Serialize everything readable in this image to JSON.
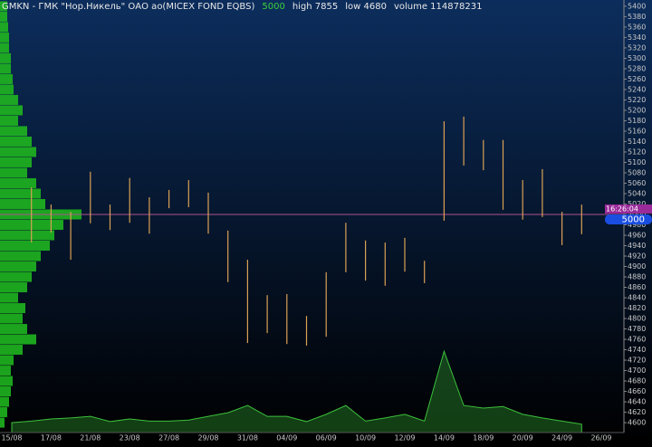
{
  "header": {
    "ticker": "GMKN - ГМК \"Нор.Никель\" ОАО ао(MICEX FOND EQBS)",
    "price": 5000,
    "high": "high 7855",
    "low": "low 4680",
    "volume": "volume 114878231",
    "time": "16:26:04"
  },
  "chart_data": {
    "type": "range",
    "categories": [
      "15/08",
      null,
      "17/08",
      null,
      "21/08",
      null,
      "23/08",
      null,
      "27/08",
      null,
      "29/08",
      null,
      "31/08",
      null,
      "04/09",
      null,
      "06/09",
      null,
      "10/09",
      null,
      "12/09",
      null,
      "14/09",
      null,
      "18/09",
      null,
      "20/09",
      null,
      "24/09",
      null,
      "26/09"
    ],
    "high": [
      null,
      5052,
      5019,
      5005,
      5082,
      5019,
      5070,
      5033,
      5047,
      5066,
      5042,
      4969,
      4913,
      4845,
      4847,
      4805,
      4889,
      4984,
      4950,
      4946,
      4955,
      4911,
      5179,
      5188,
      5143,
      5143,
      5066,
      5087,
      5005,
      5019,
      null
    ],
    "low": [
      null,
      4946,
      4965,
      4913,
      4983,
      4970,
      4984,
      4963,
      5012,
      5014,
      4963,
      4870,
      4753,
      4772,
      4751,
      4748,
      4765,
      4889,
      4873,
      4863,
      4890,
      4868,
      4988,
      5094,
      5085,
      5009,
      4990,
      4995,
      4941,
      4962,
      null
    ],
    "color": "#d9a055",
    "volume": [
      4600,
      4603,
      4607,
      4609,
      4612,
      4602,
      4607,
      4603,
      4603,
      4605,
      4612,
      4619,
      4633,
      4612,
      4612,
      4602,
      4616,
      4633,
      4603,
      4609,
      4616,
      4603,
      4737,
      4633,
      4628,
      4631,
      4616,
      4609,
      4603,
      4597,
      null
    ],
    "volume_color": "#2a8a2a",
    "profile_levels": [
      4600,
      4620,
      4640,
      4660,
      4680,
      4700,
      4720,
      4740,
      4760,
      4780,
      4800,
      4820,
      4840,
      4860,
      4880,
      4900,
      4920,
      4940,
      4960,
      4980,
      5000,
      5020,
      5040,
      5060,
      5080,
      5100,
      5120,
      5140,
      5160,
      5180,
      5200,
      5220,
      5240,
      5260,
      5280,
      5300,
      5320,
      5340,
      5360,
      5380,
      5400
    ],
    "profile_values": [
      5,
      8,
      10,
      12,
      14,
      12,
      15,
      25,
      40,
      30,
      25,
      28,
      20,
      30,
      35,
      40,
      45,
      55,
      60,
      70,
      90,
      50,
      45,
      40,
      30,
      35,
      40,
      35,
      30,
      20,
      25,
      20,
      15,
      14,
      12,
      12,
      10,
      10,
      9,
      8,
      8
    ],
    "profile_xlim": [
      0,
      100
    ],
    "profile_color": "#1fb51f",
    "ylim": [
      4581,
      5412
    ],
    "yticks": [
      4600,
      4620,
      4640,
      4660,
      4680,
      4700,
      4720,
      4740,
      4760,
      4780,
      4800,
      4820,
      4840,
      4860,
      4880,
      4900,
      4920,
      4940,
      4960,
      4980,
      5000,
      5020,
      5040,
      5060,
      5080,
      5100,
      5120,
      5140,
      5160,
      5180,
      5200,
      5220,
      5240,
      5260,
      5280,
      5300,
      5320,
      5340,
      5360,
      5380,
      5400
    ],
    "grid": false
  }
}
